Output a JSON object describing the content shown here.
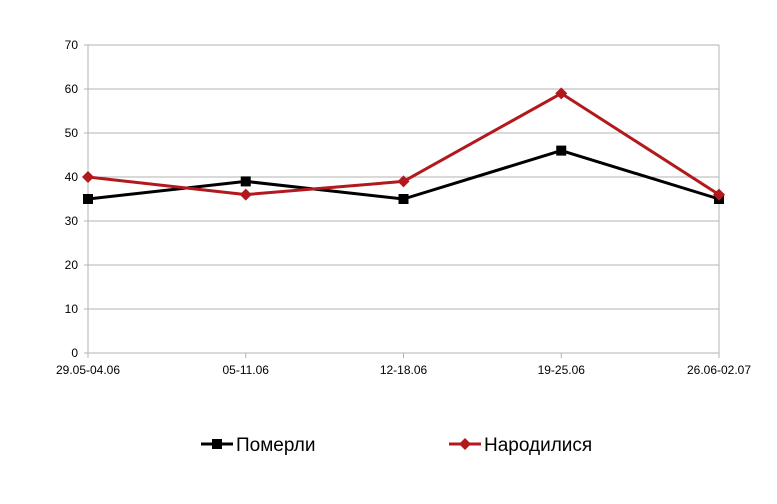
{
  "chart_data": {
    "type": "line",
    "title": "",
    "xlabel": "",
    "ylabel": "",
    "categories": [
      "29.05-04.06",
      "05-11.06",
      "12-18.06",
      "19-25.06",
      "26.06-02.07"
    ],
    "ylim": [
      0,
      70
    ],
    "yticks": [
      "0",
      "10",
      "20",
      "30",
      "40",
      "50",
      "60",
      "70"
    ],
    "grid": true,
    "legend_position": "bottom",
    "series": [
      {
        "name": "Померли",
        "values": [
          35,
          39,
          35,
          46,
          35
        ],
        "color": "#000000",
        "marker": "square"
      },
      {
        "name": "Народилися",
        "values": [
          40,
          36,
          39,
          59,
          36
        ],
        "color": "#b3181d",
        "marker": "diamond"
      }
    ],
    "colors": {
      "grid": "#b3b3b3",
      "axis": "#b3b3b3"
    }
  }
}
